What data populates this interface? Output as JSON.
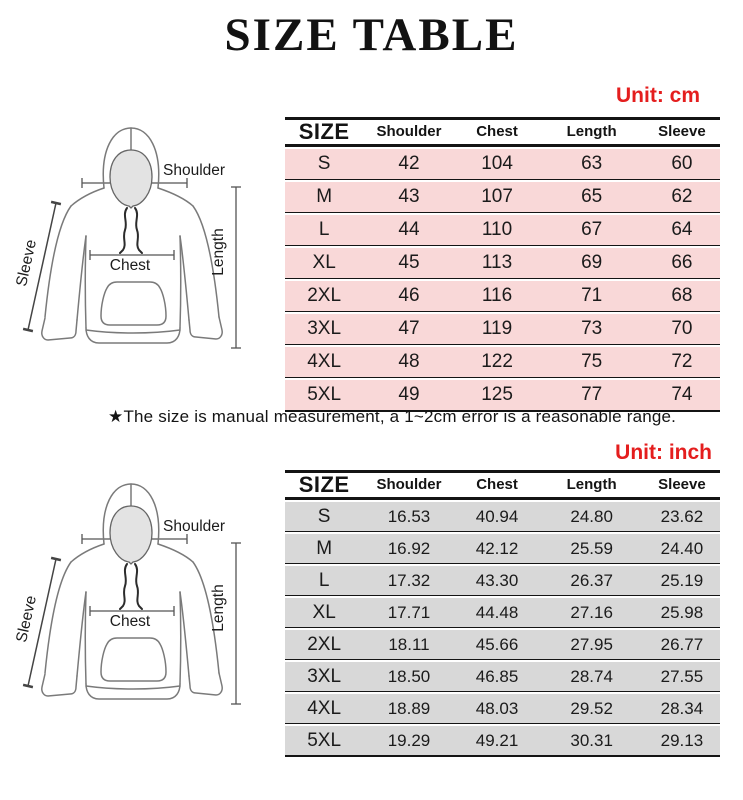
{
  "title": "SIZE TABLE",
  "note": "★The size is manual measurement, a 1~2cm error is a reasonable range.",
  "colors": {
    "accent_red": "#e41e1e",
    "row_pink": "#f9d8d8",
    "row_gray": "#d8d8d8"
  },
  "diagram_labels": {
    "shoulder": "Shoulder",
    "sleeve": "Sleeve",
    "chest": "Chest",
    "length": "Length"
  },
  "cm_table": {
    "unit_label": "Unit: cm",
    "columns": [
      "SIZE",
      "Shoulder",
      "Chest",
      "Length",
      "Sleeve"
    ],
    "rows": [
      [
        "S",
        "42",
        "104",
        "63",
        "60"
      ],
      [
        "M",
        "43",
        "107",
        "65",
        "62"
      ],
      [
        "L",
        "44",
        "110",
        "67",
        "64"
      ],
      [
        "XL",
        "45",
        "113",
        "69",
        "66"
      ],
      [
        "2XL",
        "46",
        "116",
        "71",
        "68"
      ],
      [
        "3XL",
        "47",
        "119",
        "73",
        "70"
      ],
      [
        "4XL",
        "48",
        "122",
        "75",
        "72"
      ],
      [
        "5XL",
        "49",
        "125",
        "77",
        "74"
      ]
    ]
  },
  "inch_table": {
    "unit_label": "Unit: inch",
    "columns": [
      "SIZE",
      "Shoulder",
      "Chest",
      "Length",
      "Sleeve"
    ],
    "rows": [
      [
        "S",
        "16.53",
        "40.94",
        "24.80",
        "23.62"
      ],
      [
        "M",
        "16.92",
        "42.12",
        "25.59",
        "24.40"
      ],
      [
        "L",
        "17.32",
        "43.30",
        "26.37",
        "25.19"
      ],
      [
        "XL",
        "17.71",
        "44.48",
        "27.16",
        "25.98"
      ],
      [
        "2XL",
        "18.11",
        "45.66",
        "27.95",
        "26.77"
      ],
      [
        "3XL",
        "18.50",
        "46.85",
        "28.74",
        "27.55"
      ],
      [
        "4XL",
        "18.89",
        "48.03",
        "29.52",
        "28.34"
      ],
      [
        "5XL",
        "19.29",
        "49.21",
        "30.31",
        "29.13"
      ]
    ]
  }
}
